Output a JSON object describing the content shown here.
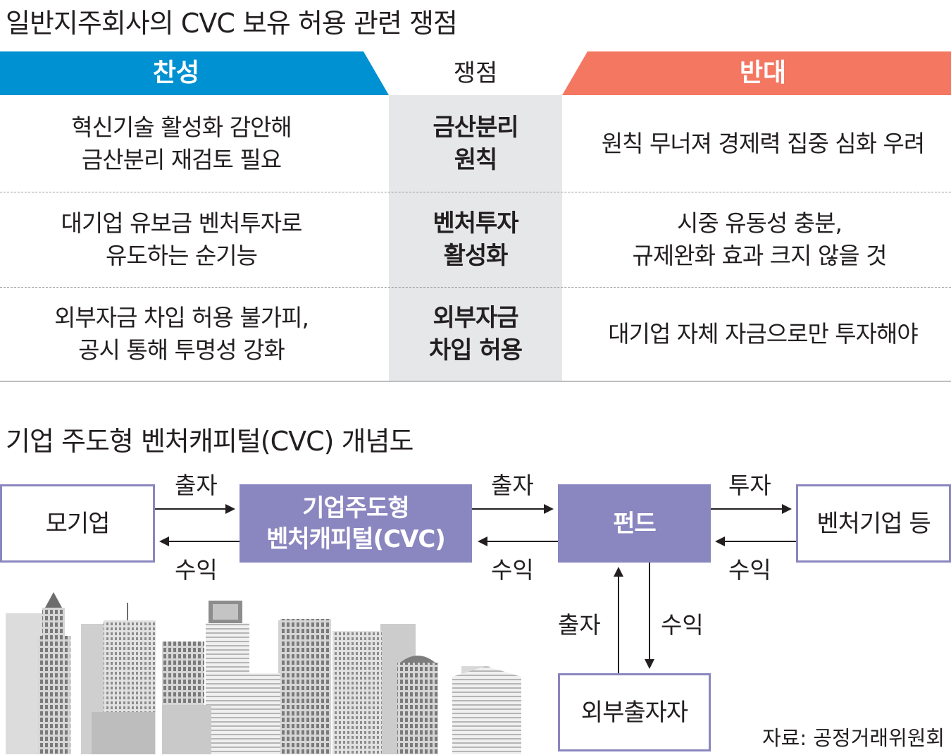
{
  "title_table": "일반지주회사의 CVC 보유 허용 관련 쟁점",
  "header": {
    "pro": "찬성",
    "issue": "쟁점",
    "con": "반대",
    "pro_color": "#0091d2",
    "con_color": "#f47762"
  },
  "rows": [
    {
      "pro": "혁신기술 활성화 감안해\n금산분리 재검토 필요",
      "issue": "금산분리\n원칙",
      "con": "원칙 무너져 경제력 집중 심화 우려"
    },
    {
      "pro": "대기업 유보금 벤처투자로\n유도하는 순기능",
      "issue": "벤처투자\n활성화",
      "con": "시중 유동성 충분,\n규제완화 효과 크지 않을 것"
    },
    {
      "pro": "외부자금 차입 허용 불가피,\n공시 통해 투명성 강화",
      "issue": "외부자금\n차입 허용",
      "con": "대기업 자체 자금으로만 투자해야"
    }
  ],
  "title_diagram": "기업 주도형 벤처캐피털(CVC) 개념도",
  "diagram": {
    "boxes": {
      "parent": "모기업",
      "cvc": "기업주도형\n벤처캐피털(CVC)",
      "fund": "펀드",
      "venture": "벤처기업 등",
      "external": "외부출자자"
    },
    "labels": {
      "invest1": "출자",
      "return1": "수익",
      "invest2": "출자",
      "return2": "수익",
      "invest3": "투자",
      "return3": "수익",
      "invest4": "출자",
      "return4": "수익"
    },
    "box_color": "#8a86bf"
  },
  "source": "자료: 공정거래위원회"
}
